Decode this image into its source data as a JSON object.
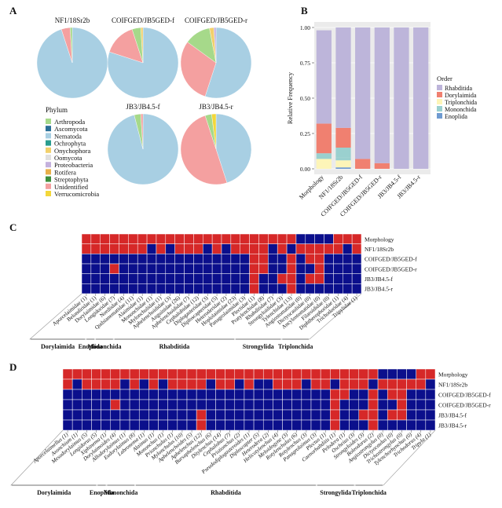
{
  "panel_letters": [
    "A",
    "B",
    "C",
    "D"
  ],
  "chart_data": [
    {
      "panel": "A",
      "type": "pie",
      "legend_title": "Phylum",
      "legend": [
        {
          "label": "Arthropoda",
          "color": "#a6d98a"
        },
        {
          "label": "Ascomycota",
          "color": "#2a6f97"
        },
        {
          "label": "Nematoda",
          "color": "#a8cfe3"
        },
        {
          "label": "Ochrophyta",
          "color": "#2a9d8f"
        },
        {
          "label": "Onychophora",
          "color": "#f2d06b"
        },
        {
          "label": "Oomycota",
          "color": "#e0e0e0"
        },
        {
          "label": "Proteobacteria",
          "color": "#c4b1dd"
        },
        {
          "label": "Rotifera",
          "color": "#e8b04a"
        },
        {
          "label": "Streptophyta",
          "color": "#3d8f3d"
        },
        {
          "label": "Unidentified",
          "color": "#f4a0a0"
        },
        {
          "label": "Verrucomicrobia",
          "color": "#f3d73a"
        }
      ],
      "pies": [
        {
          "title": "NF1/18Sr2b",
          "slices": [
            {
              "label": "Nematoda",
              "value": 0.95,
              "color": "#a8cfe3"
            },
            {
              "label": "Unidentified",
              "value": 0.04,
              "color": "#f4a0a0"
            },
            {
              "label": "Arthropoda",
              "value": 0.01,
              "color": "#a6d98a"
            }
          ]
        },
        {
          "title": "COIFGED/JB5GED-f",
          "slices": [
            {
              "label": "Nematoda",
              "value": 0.8,
              "color": "#a8cfe3"
            },
            {
              "label": "Unidentified",
              "value": 0.15,
              "color": "#f4a0a0"
            },
            {
              "label": "Arthropoda",
              "value": 0.04,
              "color": "#a6d98a"
            },
            {
              "label": "Onychophora",
              "value": 0.01,
              "color": "#f2d06b"
            }
          ]
        },
        {
          "title": "COIFGED/JB5GED-r",
          "slices": [
            {
              "label": "Nematoda",
              "value": 0.55,
              "color": "#a8cfe3"
            },
            {
              "label": "Unidentified",
              "value": 0.3,
              "color": "#f4a0a0"
            },
            {
              "label": "Arthropoda",
              "value": 0.12,
              "color": "#a6d98a"
            },
            {
              "label": "Onychophora",
              "value": 0.02,
              "color": "#f2d06b"
            },
            {
              "label": "Proteobacteria",
              "value": 0.01,
              "color": "#c4b1dd"
            }
          ]
        },
        {
          "title": "JB3/JB4.5-f",
          "slices": [
            {
              "label": "Nematoda",
              "value": 0.96,
              "color": "#a8cfe3"
            },
            {
              "label": "Arthropoda",
              "value": 0.03,
              "color": "#a6d98a"
            },
            {
              "label": "Unidentified",
              "value": 0.01,
              "color": "#f4a0a0"
            }
          ]
        },
        {
          "title": "JB3/JB4.5-r",
          "slices": [
            {
              "label": "Nematoda",
              "value": 0.45,
              "color": "#a8cfe3"
            },
            {
              "label": "Unidentified",
              "value": 0.5,
              "color": "#f4a0a0"
            },
            {
              "label": "Arthropoda",
              "value": 0.03,
              "color": "#a6d98a"
            },
            {
              "label": "Verrucomicrobia",
              "value": 0.02,
              "color": "#f3d73a"
            }
          ]
        }
      ]
    },
    {
      "panel": "B",
      "type": "bar",
      "stacked": true,
      "ylabel": "Relative Frequency",
      "ylim": [
        0,
        1
      ],
      "yticks": [
        "0.00",
        "0.25",
        "0.50",
        "0.75",
        "1.00"
      ],
      "categories": [
        "Morphology",
        "NF1/18Sr2b",
        "COIFGED/JB5GED-f",
        "COIFGED/JB5GED-r",
        "JB3/JB4.5-f",
        "JB3/JB4.5-r"
      ],
      "legend_title": "Order",
      "series": [
        {
          "name": "Enoplida",
          "color": "#6f9bd1",
          "values": [
            0.0,
            0.01,
            0.0,
            0.0,
            0.0,
            0.0
          ]
        },
        {
          "name": "Mononchida",
          "color": "#9ad0cf",
          "values": [
            0.0,
            0.02,
            0.0,
            0.0,
            0.0,
            0.0
          ]
        },
        {
          "name": "Triplonchida",
          "color": "#fdf5b8",
          "values": [
            0.07,
            0.0,
            0.0,
            0.0,
            0.0,
            0.0
          ]
        },
        {
          "name": "Dorylaimida",
          "color": "#f08070",
          "values": [
            0.21,
            0.14,
            0.07,
            0.04,
            0.0,
            0.0
          ]
        },
        {
          "name": "Rhabditida",
          "color": "#bdb5da",
          "values": [
            0.66,
            0.71,
            0.93,
            0.96,
            1.0,
            1.0
          ]
        }
      ],
      "extra_segments": [
        {
          "category": "Morphology",
          "between": "Triplonchida-Dorylaimida",
          "color": "#9ad0cf",
          "value": 0.04
        },
        {
          "category": "NF1/18Sr2b",
          "between": "Mononchida-Dorylaimida",
          "color": "#9ad0cf",
          "value": 0.07
        },
        {
          "category": "NF1/18Sr2b",
          "between": "Enoplida-Mononchida",
          "color": "#fdf5b8",
          "value": 0.05
        }
      ]
    },
    {
      "panel": "C",
      "type": "heatmap",
      "colors": {
        "present": "#d62828",
        "absent": "#0b0f8c"
      },
      "rows": [
        "Morphology",
        "NF1/18Sr2b",
        "COIFGED/JB5GED-f",
        "COIFGED/JB5GED-r",
        "JB3/JB4.5-f",
        "JB3/JB4.5-r"
      ],
      "columns": [
        "Aporcelaimidae (1)",
        "Belondiridae (1)",
        "Dorylaimidae (6)",
        "Longidoridae (7)",
        "Nordiidae (4)",
        "Qudsianematidae (11)",
        "Alaimidae (1)",
        "Mononchidae (1)",
        "Mylonchulidae (1)",
        "Aphelenchoididae (3)",
        "Anguinidae (26)",
        "Aphelenchoididae (7)",
        "Cephalobidae (12)",
        "Diplogasteridae (3)",
        "Diploscapteridae (5)",
        "Heteroderidae (2)",
        "Hoplolaimidae (23)",
        "Panagrolaimidae (3)",
        "Plectidae (1)",
        "Pratylenchidae (8)",
        "Rhabditidae (7)",
        "Strongyloididae (3)",
        "Tylenchidae (13)",
        "Angiostomatidae (0)",
        "Dictyocaulidae (0)",
        "Ancylostomatidae (0)",
        "Filaroididae (0)",
        "Diphtherophoridae (1)",
        "Trichodoridae (4)",
        "Tripylidae (1)"
      ],
      "matrix": [
        [
          1,
          1,
          1,
          1,
          1,
          1,
          1,
          1,
          1,
          1,
          1,
          1,
          1,
          1,
          1,
          1,
          1,
          1,
          1,
          1,
          1,
          1,
          1,
          0,
          0,
          0,
          0,
          1,
          1,
          1
        ],
        [
          1,
          1,
          1,
          1,
          1,
          1,
          1,
          0,
          1,
          0,
          1,
          1,
          1,
          0,
          1,
          0,
          1,
          1,
          1,
          1,
          0,
          1,
          0,
          1,
          1,
          1,
          1,
          1,
          0,
          1
        ],
        [
          0,
          0,
          0,
          0,
          0,
          0,
          0,
          0,
          0,
          0,
          0,
          0,
          0,
          0,
          0,
          0,
          0,
          0,
          1,
          1,
          0,
          0,
          1,
          0,
          1,
          1,
          0,
          0,
          0,
          0
        ],
        [
          0,
          0,
          0,
          1,
          0,
          0,
          0,
          0,
          0,
          0,
          0,
          0,
          0,
          0,
          0,
          0,
          0,
          0,
          1,
          1,
          0,
          0,
          1,
          0,
          0,
          1,
          0,
          0,
          0,
          0
        ],
        [
          0,
          0,
          0,
          0,
          0,
          0,
          0,
          0,
          0,
          0,
          0,
          0,
          0,
          0,
          0,
          0,
          0,
          0,
          1,
          0,
          0,
          1,
          1,
          0,
          1,
          1,
          0,
          0,
          0,
          0
        ],
        [
          0,
          0,
          0,
          0,
          0,
          0,
          0,
          0,
          0,
          0,
          0,
          0,
          0,
          0,
          0,
          0,
          0,
          0,
          1,
          0,
          0,
          0,
          1,
          0,
          0,
          0,
          0,
          0,
          0,
          0
        ]
      ],
      "groups": [
        {
          "label": "Dorylaimida",
          "start": 0,
          "end": 5
        },
        {
          "label": "Enoplida",
          "start": 6,
          "end": 6
        },
        {
          "label": "Mononchida",
          "start": 7,
          "end": 8
        },
        {
          "label": "Rhabditida",
          "start": 9,
          "end": 21
        },
        {
          "label": "Strongylida",
          "start": 22,
          "end": 26
        },
        {
          "label": "Triplonchida",
          "start": 27,
          "end": 29
        }
      ]
    },
    {
      "panel": "D",
      "type": "heatmap",
      "colors": {
        "present": "#d62828",
        "absent": "#0b0f8c"
      },
      "rows": [
        "Morphology",
        "NF1/18Sr2b",
        "COIFGED/JB5GED-f",
        "COIFGED/JB5GED-r",
        "JB3/JB4.5-f",
        "JB3/JB4.5-r"
      ],
      "columns": [
        "Aporcelaimellus (1)",
        "Axonchium (1)",
        "Mesodorylaimus (5)",
        "Longidorus (5)",
        "Xiphinema (1)",
        "Dorylaimoides (4)",
        "Allodorylaimus (1)",
        "Eudorylaimus (8)",
        "Labronema (1)",
        "Alaimus (1)",
        "Mononchus (1)",
        "Prionchulus (1)",
        "Mylonchulus (10)",
        "Aphelenchoides (5)",
        "Aphelenchus (12)",
        "Bursaphelenchus (6)",
        "Ditylenchus (14)",
        "Cephalobus (7)",
        "Pristionchus (2)",
        "Pseudodiplogasteroides (1)",
        "Diploscapter (5)",
        "Heterodera (2)",
        "Helicotylenchus (4)",
        "Meloidogyne (3)",
        "Rotylenchulus (6)",
        "Rotylenchus (3)",
        "Panagrolaimus (3)",
        "Plectus (1)",
        "Caenorhabditis (1)",
        "Pelodera (1)",
        "Oscheius (3)",
        "Strongyloides (3)",
        "Boleodorus (2)",
        "Angiostrongylus (0)",
        "Dictyocaulus (0)",
        "Trichostrongylus (0)",
        "Tylenchorhynchus (0)",
        "Trichodorus (4)",
        "Tripyla (1)"
      ],
      "matrix": [
        [
          1,
          1,
          1,
          1,
          1,
          1,
          1,
          1,
          1,
          1,
          1,
          1,
          1,
          1,
          1,
          1,
          1,
          1,
          1,
          1,
          1,
          1,
          1,
          1,
          1,
          1,
          1,
          1,
          1,
          1,
          1,
          1,
          1,
          0,
          0,
          0,
          0,
          1,
          1
        ],
        [
          1,
          0,
          1,
          1,
          1,
          1,
          0,
          1,
          0,
          1,
          0,
          1,
          1,
          1,
          1,
          0,
          1,
          1,
          0,
          1,
          0,
          0,
          1,
          1,
          1,
          0,
          1,
          1,
          0,
          1,
          1,
          1,
          0,
          1,
          1,
          1,
          1,
          1,
          0
        ],
        [
          0,
          0,
          0,
          0,
          0,
          0,
          0,
          0,
          0,
          0,
          0,
          0,
          0,
          0,
          0,
          0,
          0,
          0,
          0,
          0,
          0,
          0,
          0,
          0,
          0,
          0,
          0,
          0,
          1,
          1,
          0,
          0,
          1,
          0,
          1,
          1,
          0,
          0,
          0
        ],
        [
          0,
          0,
          0,
          0,
          0,
          1,
          0,
          0,
          0,
          0,
          0,
          0,
          0,
          0,
          0,
          0,
          0,
          0,
          0,
          0,
          0,
          0,
          0,
          0,
          0,
          0,
          0,
          0,
          1,
          0,
          0,
          0,
          1,
          0,
          0,
          1,
          0,
          0,
          0
        ],
        [
          0,
          0,
          0,
          0,
          0,
          0,
          0,
          0,
          0,
          0,
          0,
          0,
          0,
          0,
          1,
          0,
          0,
          0,
          0,
          0,
          0,
          0,
          0,
          0,
          0,
          0,
          0,
          0,
          1,
          0,
          0,
          1,
          1,
          0,
          1,
          1,
          0,
          0,
          0
        ],
        [
          0,
          0,
          0,
          0,
          0,
          0,
          0,
          0,
          0,
          0,
          0,
          0,
          0,
          0,
          1,
          0,
          0,
          0,
          0,
          0,
          0,
          0,
          0,
          0,
          0,
          0,
          0,
          0,
          1,
          0,
          0,
          0,
          1,
          0,
          0,
          0,
          0,
          0,
          0
        ]
      ],
      "groups": [
        {
          "label": "Dorylaimida",
          "start": 0,
          "end": 8
        },
        {
          "label": "Enoplida",
          "start": 9,
          "end": 9
        },
        {
          "label": "Mononchida",
          "start": 10,
          "end": 12
        },
        {
          "label": "Rhabditida",
          "start": 13,
          "end": 31
        },
        {
          "label": "Strongylida",
          "start": 32,
          "end": 35
        },
        {
          "label": "Triplonchida",
          "start": 36,
          "end": 38
        }
      ]
    }
  ]
}
